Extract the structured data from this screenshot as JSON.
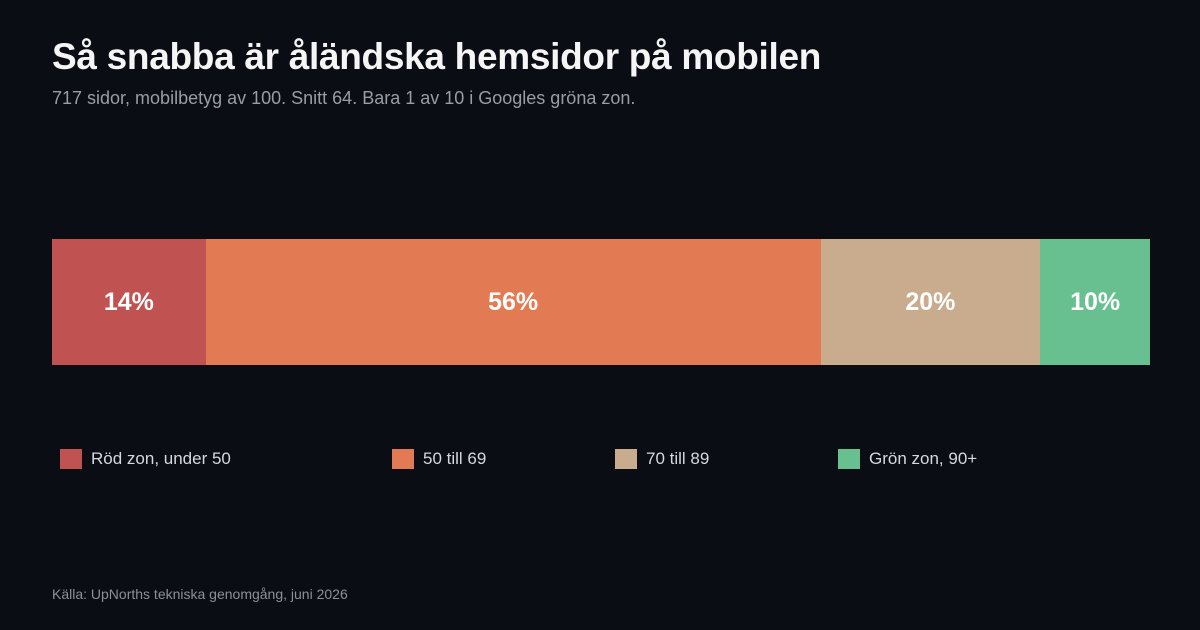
{
  "title": "Så snabba är åländska hemsidor på mobilen",
  "subtitle": "717 sidor, mobilbetyg av 100. Snitt 64. Bara 1 av 10 i Googles gröna zon.",
  "source": "Källa: UpNorths tekniska genomgång, juni 2026",
  "chart_data": {
    "type": "bar",
    "stacked": true,
    "orientation": "horizontal",
    "unit": "%",
    "categories": [
      "Röd zon, under 50",
      "50 till 69",
      "70 till 89",
      "Grön zon, 90+"
    ],
    "values": [
      14,
      56,
      20,
      10
    ],
    "data_labels": [
      "14%",
      "56%",
      "20%",
      "10%"
    ],
    "colors": [
      "#c05252",
      "#e27a54",
      "#c9ab8e",
      "#68c090"
    ],
    "legend": {
      "placement": "bottom",
      "entries": [
        "Röd zon, under 50",
        "50 till 69",
        "70 till 89",
        "Grön zon, 90+"
      ]
    },
    "grid": false
  }
}
